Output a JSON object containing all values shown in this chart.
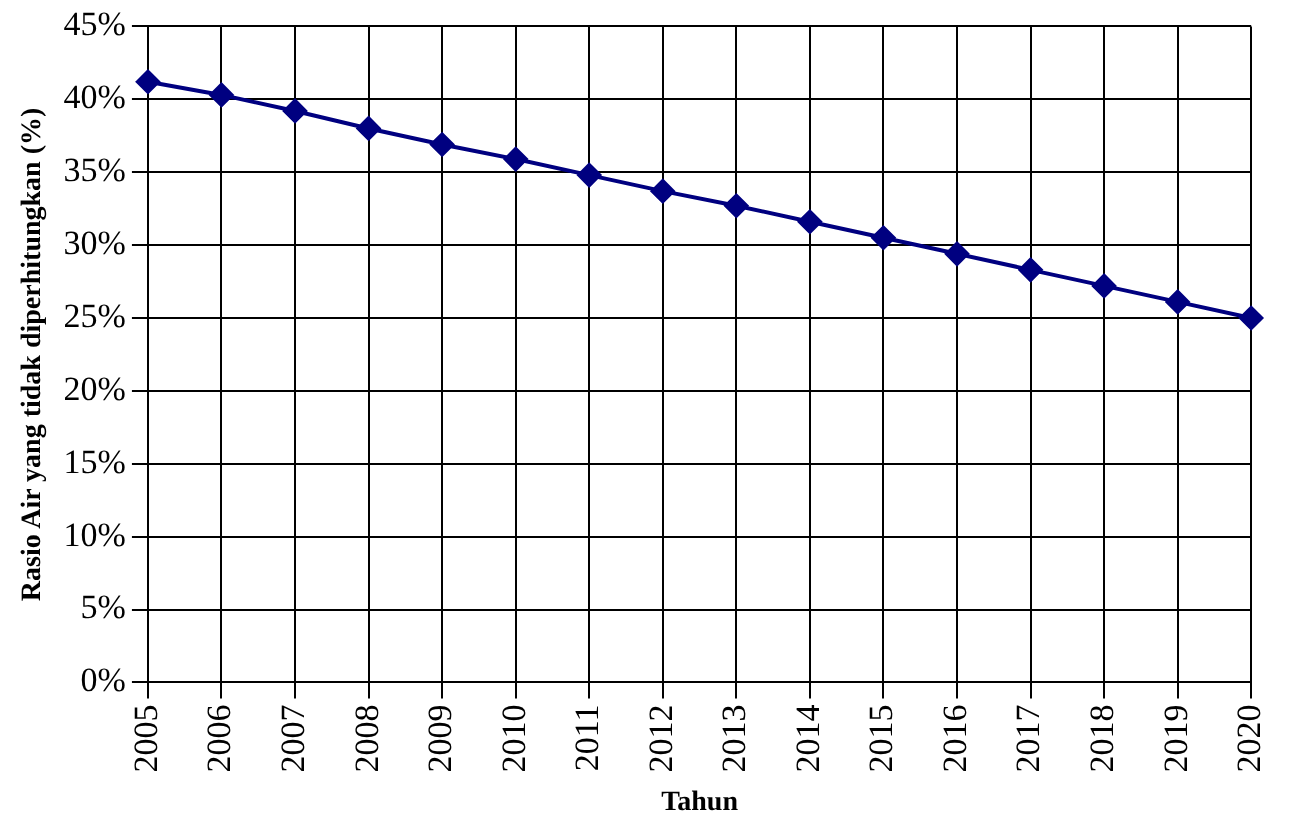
{
  "chart_data": {
    "type": "line",
    "xlabel": "Tahun",
    "ylabel": "Rasio Air yang tidak diperhitungkan (%)",
    "categories": [
      "2005",
      "2006",
      "2007",
      "2008",
      "2009",
      "2010",
      "2011",
      "2012",
      "2013",
      "2014",
      "2015",
      "2016",
      "2017",
      "2018",
      "2019",
      "2020"
    ],
    "series": [
      {
        "color": "#000080",
        "values": [
          41.2,
          40.3,
          39.2,
          38.0,
          36.9,
          35.9,
          34.8,
          33.7,
          32.7,
          31.6,
          30.5,
          29.4,
          28.3,
          27.2,
          26.1,
          25.0
        ]
      }
    ],
    "ylim": [
      0,
      45
    ],
    "yticks": [
      {
        "value": 0,
        "label": "0%"
      },
      {
        "value": 5,
        "label": "5%"
      },
      {
        "value": 10,
        "label": "10%"
      },
      {
        "value": 15,
        "label": "15%"
      },
      {
        "value": 20,
        "label": "20%"
      },
      {
        "value": 25,
        "label": "25%"
      },
      {
        "value": 30,
        "label": "30%"
      },
      {
        "value": 35,
        "label": "35%"
      },
      {
        "value": 40,
        "label": "40%"
      },
      {
        "value": 45,
        "label": "45%"
      }
    ],
    "grid": true,
    "legend": false,
    "marker": "diamond",
    "line_style": "solid"
  }
}
